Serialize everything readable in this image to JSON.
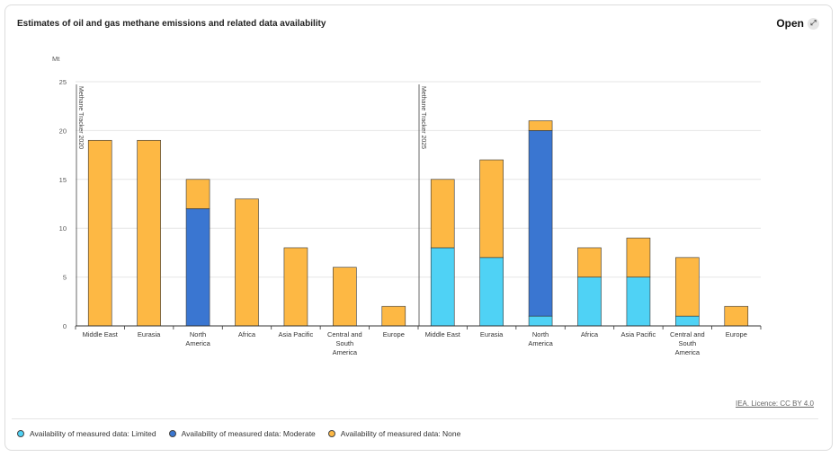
{
  "header": {
    "title": "Estimates of oil and gas methane emissions and related data availability",
    "open_label": "Open",
    "open_icon": "expand-icon"
  },
  "footer": {
    "licence": "IEA. Licence: CC BY 4.0"
  },
  "chart_data": {
    "type": "bar",
    "stacked": true,
    "title": "Estimates of oil and gas methane emissions and related data availability",
    "ylabel": "Mt",
    "ylim": [
      0,
      25
    ],
    "yticks": [
      "0",
      "5",
      "10",
      "15",
      "20",
      "25"
    ],
    "grid": true,
    "legend_position": "bottom",
    "groups": [
      {
        "label": "Methane Tracker 2020",
        "categories": [
          "Middle East",
          "Eurasia",
          "North America",
          "Africa",
          "Asia Pacific",
          "Central and South America",
          "Europe"
        ],
        "category_lines": [
          [
            "Middle East"
          ],
          [
            "Eurasia"
          ],
          [
            "North",
            "America"
          ],
          [
            "Africa"
          ],
          [
            "Asia Pacific"
          ],
          [
            "Central and",
            "South",
            "America"
          ],
          [
            "Europe"
          ]
        ],
        "series": [
          {
            "name": "Availability of measured data: Limited",
            "values": [
              0,
              0,
              0,
              0,
              0,
              0,
              0
            ]
          },
          {
            "name": "Availability of measured data: Moderate",
            "values": [
              0,
              0,
              12,
              0,
              0,
              0,
              0
            ]
          },
          {
            "name": "Availability of measured data: None",
            "values": [
              19,
              19,
              3,
              13,
              8,
              6,
              2
            ]
          }
        ]
      },
      {
        "label": "Methane Tracker 2025",
        "categories": [
          "Middle East",
          "Eurasia",
          "North America",
          "Africa",
          "Asia Pacific",
          "Central and South America",
          "Europe"
        ],
        "category_lines": [
          [
            "Middle East"
          ],
          [
            "Eurasia"
          ],
          [
            "North",
            "America"
          ],
          [
            "Africa"
          ],
          [
            "Asia Pacific"
          ],
          [
            "Central and",
            "South",
            "America"
          ],
          [
            "Europe"
          ]
        ],
        "series": [
          {
            "name": "Availability of measured data: Limited",
            "values": [
              8,
              7,
              1,
              5,
              5,
              1,
              0
            ]
          },
          {
            "name": "Availability of measured data: Moderate",
            "values": [
              0,
              0,
              19,
              0,
              0,
              0,
              0
            ]
          },
          {
            "name": "Availability of measured data: None",
            "values": [
              7,
              10,
              1,
              3,
              4,
              6,
              2
            ]
          }
        ]
      }
    ],
    "legend": [
      {
        "name": "Availability of measured data: Limited",
        "color": "#4fd2f5"
      },
      {
        "name": "Availability of measured data: Moderate",
        "color": "#3a76d1"
      },
      {
        "name": "Availability of measured data: None",
        "color": "#fdb844"
      }
    ]
  }
}
